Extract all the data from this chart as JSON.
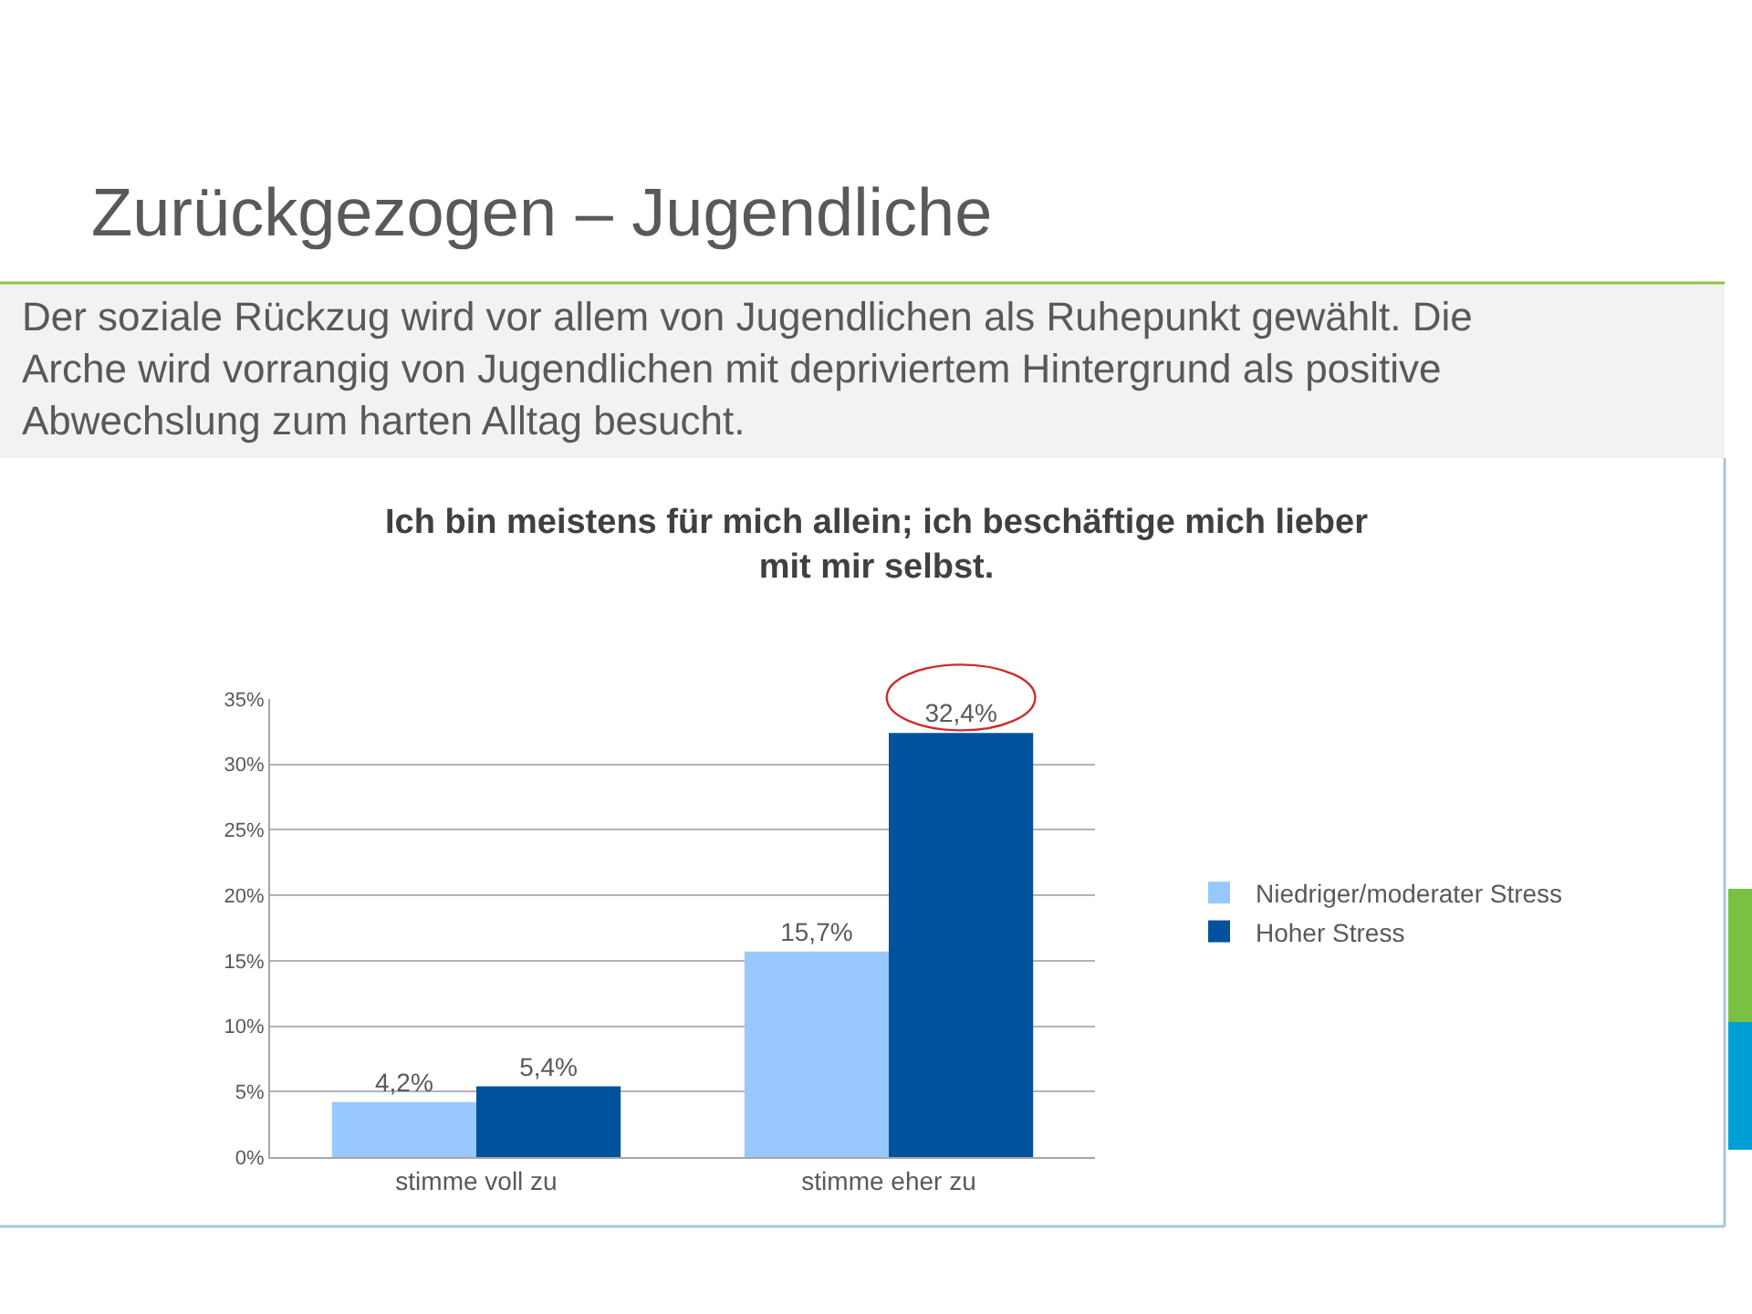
{
  "chart_data": {
    "type": "bar",
    "title": "Zurückgezogen – Jugendliche",
    "subtitle": "Der soziale Rückzug wird vor allem von Jugendlichen als Ruhepunkt gewählt. Die Arche wird vorrangig von Jugendlichen mit depriviertem Hintergrund als positive Abwechslung zum harten Alltag besucht.",
    "annotations": [
      "Ich bin meistens für mich allein; ich beschäftige mich lieber mit mir selbst."
    ],
    "categories": [
      "stimme voll zu",
      "stimme eher zu"
    ],
    "series": [
      {
        "name": "Niedriger/moderater Stress",
        "color": "#99c8ff",
        "values": [
          4.2,
          15.7
        ],
        "value_labels": [
          "4,2%",
          "15,7%"
        ]
      },
      {
        "name": "Hoher Stress",
        "color": "#00529c",
        "values": [
          5.4,
          32.4
        ],
        "value_labels": [
          "5,4%",
          "32,4%"
        ]
      }
    ],
    "ylim": [
      0,
      35
    ],
    "yticks": [
      {
        "value": 0,
        "label": "0%"
      },
      {
        "value": 5,
        "label": "5%"
      },
      {
        "value": 10,
        "label": "10%"
      },
      {
        "value": 15,
        "label": "15%"
      },
      {
        "value": 20,
        "label": "20%"
      },
      {
        "value": 25,
        "label": "25%"
      },
      {
        "value": 30,
        "label": "30%"
      },
      {
        "value": 35,
        "label": "35%"
      }
    ],
    "grid": "y",
    "legend": "right"
  }
}
